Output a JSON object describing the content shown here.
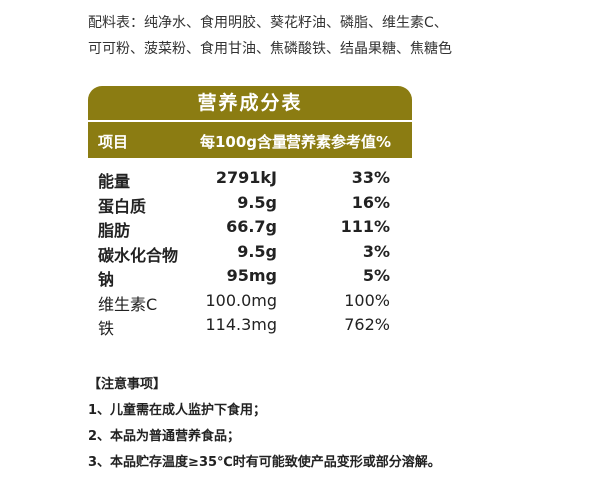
{
  "ingredients": {
    "line1": "配料表：纯净水、食用明胶、葵花籽油、磷脂、维生素C、",
    "line2": "可可粉、菠菜粉、食用甘油、焦磷酸铁、结晶果糖、焦糖色"
  },
  "table": {
    "title": "营养成分表",
    "headers": [
      "项目",
      "每100g含量",
      "营养素参考值%"
    ],
    "rows": [
      {
        "name": "能量",
        "amount": "2791kJ",
        "nrv": "33%",
        "bold": true
      },
      {
        "name": "蛋白质",
        "amount": "9.5g",
        "nrv": "16%",
        "bold": true
      },
      {
        "name": "脂肪",
        "amount": "66.7g",
        "nrv": "111%",
        "bold": true
      },
      {
        "name": "碳水化合物",
        "amount": "9.5g",
        "nrv": "3%",
        "bold": true
      },
      {
        "name": "钠",
        "amount": "95mg",
        "nrv": "5%",
        "bold": true
      },
      {
        "name": "维生素C",
        "amount": "100.0mg",
        "nrv": "100%",
        "bold": false
      },
      {
        "name": "铁",
        "amount": "114.3mg",
        "nrv": "762%",
        "bold": false
      }
    ]
  },
  "notes": {
    "title": "【注意事项】",
    "items": [
      "1、儿童需在成人监护下食用；",
      "2、本品为普通营养食品；",
      "3、本品贮存温度≥35℃时有可能致使产品变形或部分溶解。"
    ]
  },
  "colors": {
    "header": "#8b7c12"
  }
}
